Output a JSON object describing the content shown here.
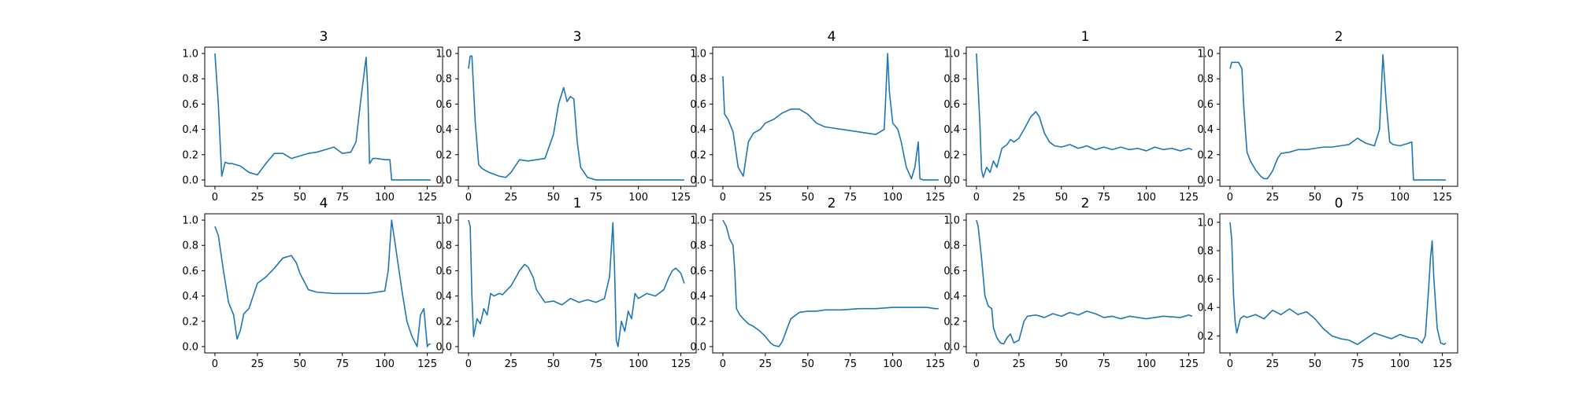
{
  "figure": {
    "line_color": "#1f77b4",
    "axes_color": "#000000",
    "background": "#ffffff"
  },
  "chart_data": [
    {
      "type": "line",
      "title": "3",
      "xlim": [
        -6,
        134
      ],
      "ylim": [
        -0.05,
        1.05
      ],
      "xticks": [
        0,
        25,
        50,
        75,
        100,
        125
      ],
      "yticks": [
        0.0,
        0.2,
        0.4,
        0.6,
        0.8,
        1.0
      ],
      "x": [
        0,
        2,
        4,
        6,
        8,
        10,
        15,
        20,
        25,
        30,
        35,
        40,
        45,
        50,
        55,
        60,
        65,
        70,
        75,
        80,
        83,
        86,
        89,
        90,
        91,
        93,
        95,
        100,
        103,
        104,
        105,
        110,
        120,
        127
      ],
      "y": [
        1.0,
        0.6,
        0.03,
        0.14,
        0.13,
        0.13,
        0.11,
        0.06,
        0.04,
        0.13,
        0.21,
        0.21,
        0.17,
        0.19,
        0.21,
        0.22,
        0.24,
        0.26,
        0.21,
        0.22,
        0.3,
        0.65,
        0.97,
        0.7,
        0.13,
        0.17,
        0.17,
        0.16,
        0.16,
        0.0,
        0.0,
        0.0,
        0.0,
        0.0
      ]
    },
    {
      "type": "line",
      "title": "3",
      "xlim": [
        -6,
        134
      ],
      "ylim": [
        -0.05,
        1.05
      ],
      "xticks": [
        0,
        25,
        50,
        75,
        100,
        125
      ],
      "yticks": [
        0.0,
        0.2,
        0.4,
        0.6,
        0.8,
        1.0
      ],
      "x": [
        0,
        1,
        2,
        4,
        6,
        8,
        12,
        18,
        22,
        25,
        30,
        35,
        40,
        45,
        50,
        53,
        56,
        58,
        60,
        62,
        64,
        66,
        70,
        75,
        80,
        100,
        127
      ],
      "y": [
        0.88,
        0.98,
        0.98,
        0.45,
        0.12,
        0.09,
        0.06,
        0.03,
        0.02,
        0.06,
        0.16,
        0.15,
        0.16,
        0.17,
        0.36,
        0.6,
        0.73,
        0.62,
        0.66,
        0.64,
        0.3,
        0.1,
        0.02,
        0.0,
        0.0,
        0.0,
        0.0
      ]
    },
    {
      "type": "line",
      "title": "4",
      "xlim": [
        -6,
        134
      ],
      "ylim": [
        -0.05,
        1.05
      ],
      "xticks": [
        0,
        25,
        50,
        75,
        100,
        125
      ],
      "yticks": [
        0.0,
        0.2,
        0.4,
        0.6,
        0.8,
        1.0
      ],
      "x": [
        0,
        1,
        3,
        6,
        9,
        12,
        15,
        18,
        22,
        25,
        30,
        35,
        40,
        45,
        50,
        55,
        60,
        65,
        70,
        80,
        90,
        95,
        97,
        98,
        100,
        103,
        105,
        108,
        111,
        113,
        115,
        116,
        118,
        127
      ],
      "y": [
        0.82,
        0.52,
        0.48,
        0.38,
        0.1,
        0.03,
        0.3,
        0.37,
        0.4,
        0.45,
        0.48,
        0.53,
        0.56,
        0.56,
        0.52,
        0.45,
        0.42,
        0.41,
        0.4,
        0.38,
        0.36,
        0.4,
        1.0,
        0.7,
        0.45,
        0.4,
        0.3,
        0.1,
        0.01,
        0.1,
        0.3,
        0.01,
        0.0,
        0.0
      ]
    },
    {
      "type": "line",
      "title": "1",
      "xlim": [
        -6,
        134
      ],
      "ylim": [
        -0.05,
        1.05
      ],
      "xticks": [
        0,
        25,
        50,
        75,
        100,
        125
      ],
      "yticks": [
        0.0,
        0.2,
        0.4,
        0.6,
        0.8,
        1.0
      ],
      "x": [
        0,
        2,
        3,
        4,
        6,
        8,
        10,
        12,
        15,
        18,
        20,
        22,
        25,
        28,
        32,
        35,
        37,
        40,
        43,
        46,
        50,
        55,
        60,
        65,
        70,
        75,
        80,
        85,
        90,
        95,
        100,
        105,
        110,
        115,
        120,
        125,
        127
      ],
      "y": [
        1.0,
        0.45,
        0.08,
        0.02,
        0.1,
        0.06,
        0.15,
        0.1,
        0.25,
        0.28,
        0.32,
        0.3,
        0.33,
        0.4,
        0.5,
        0.54,
        0.5,
        0.37,
        0.3,
        0.27,
        0.26,
        0.28,
        0.25,
        0.27,
        0.24,
        0.26,
        0.24,
        0.26,
        0.24,
        0.25,
        0.23,
        0.26,
        0.24,
        0.25,
        0.23,
        0.25,
        0.24
      ]
    },
    {
      "type": "line",
      "title": "2",
      "xlim": [
        -6,
        134
      ],
      "ylim": [
        -0.05,
        1.05
      ],
      "xticks": [
        0,
        25,
        50,
        75,
        100,
        125
      ],
      "yticks": [
        0.0,
        0.2,
        0.4,
        0.6,
        0.8,
        1.0
      ],
      "x": [
        0,
        1,
        3,
        5,
        7,
        8,
        9,
        10,
        12,
        15,
        18,
        20,
        22,
        25,
        28,
        30,
        35,
        40,
        45,
        50,
        55,
        60,
        65,
        70,
        75,
        80,
        85,
        88,
        90,
        92,
        94,
        96,
        100,
        105,
        107,
        108,
        127
      ],
      "y": [
        0.88,
        0.93,
        0.93,
        0.93,
        0.88,
        0.6,
        0.4,
        0.22,
        0.15,
        0.08,
        0.03,
        0.01,
        0.01,
        0.07,
        0.17,
        0.21,
        0.22,
        0.24,
        0.24,
        0.25,
        0.26,
        0.26,
        0.27,
        0.28,
        0.33,
        0.29,
        0.27,
        0.4,
        0.99,
        0.6,
        0.3,
        0.28,
        0.27,
        0.29,
        0.3,
        0.0,
        0.0
      ]
    },
    {
      "type": "line",
      "title": "4",
      "xlim": [
        -6,
        134
      ],
      "ylim": [
        -0.05,
        1.05
      ],
      "xticks": [
        0,
        25,
        50,
        75,
        100,
        125
      ],
      "yticks": [
        0.0,
        0.2,
        0.4,
        0.6,
        0.8,
        1.0
      ],
      "x": [
        0,
        2,
        5,
        8,
        11,
        13,
        15,
        17,
        20,
        25,
        30,
        35,
        40,
        45,
        48,
        50,
        55,
        60,
        70,
        80,
        90,
        100,
        102,
        104,
        106,
        110,
        113,
        116,
        119,
        121,
        123,
        125,
        126,
        127
      ],
      "y": [
        0.95,
        0.88,
        0.6,
        0.35,
        0.25,
        0.06,
        0.13,
        0.26,
        0.3,
        0.5,
        0.55,
        0.62,
        0.7,
        0.72,
        0.66,
        0.58,
        0.45,
        0.43,
        0.42,
        0.42,
        0.42,
        0.44,
        0.6,
        1.0,
        0.82,
        0.45,
        0.2,
        0.08,
        0.0,
        0.25,
        0.3,
        0.0,
        0.02,
        0.02
      ]
    },
    {
      "type": "line",
      "title": "1",
      "xlim": [
        -6,
        134
      ],
      "ylim": [
        -0.05,
        1.05
      ],
      "xticks": [
        0,
        25,
        50,
        75,
        100,
        125
      ],
      "yticks": [
        0.0,
        0.2,
        0.4,
        0.6,
        0.8,
        1.0
      ],
      "x": [
        0,
        1,
        2,
        3,
        4,
        5,
        7,
        9,
        11,
        13,
        15,
        18,
        20,
        25,
        28,
        30,
        33,
        35,
        38,
        40,
        45,
        50,
        55,
        60,
        65,
        70,
        75,
        80,
        83,
        85,
        86,
        87,
        88,
        90,
        92,
        94,
        96,
        98,
        100,
        105,
        110,
        115,
        118,
        120,
        122,
        125,
        127
      ],
      "y": [
        1.0,
        0.95,
        0.4,
        0.08,
        0.15,
        0.22,
        0.18,
        0.3,
        0.25,
        0.42,
        0.4,
        0.42,
        0.41,
        0.48,
        0.55,
        0.6,
        0.65,
        0.63,
        0.55,
        0.45,
        0.35,
        0.36,
        0.33,
        0.38,
        0.35,
        0.37,
        0.35,
        0.38,
        0.55,
        0.98,
        0.6,
        0.05,
        0.0,
        0.2,
        0.12,
        0.28,
        0.22,
        0.42,
        0.38,
        0.42,
        0.4,
        0.45,
        0.55,
        0.6,
        0.62,
        0.58,
        0.5
      ]
    },
    {
      "type": "line",
      "title": "2",
      "xlim": [
        -6,
        134
      ],
      "ylim": [
        -0.05,
        1.05
      ],
      "xticks": [
        0,
        25,
        50,
        75,
        100,
        125
      ],
      "yticks": [
        0.0,
        0.2,
        0.4,
        0.6,
        0.8,
        1.0
      ],
      "x": [
        0,
        2,
        4,
        6,
        7,
        8,
        10,
        12,
        15,
        18,
        22,
        25,
        28,
        30,
        33,
        35,
        38,
        40,
        45,
        50,
        55,
        60,
        70,
        80,
        90,
        100,
        110,
        115,
        120,
        125,
        127
      ],
      "y": [
        1.0,
        0.95,
        0.85,
        0.8,
        0.6,
        0.3,
        0.25,
        0.22,
        0.18,
        0.16,
        0.12,
        0.08,
        0.03,
        0.01,
        0.0,
        0.04,
        0.15,
        0.22,
        0.27,
        0.28,
        0.28,
        0.29,
        0.29,
        0.3,
        0.3,
        0.31,
        0.31,
        0.31,
        0.31,
        0.3,
        0.3
      ]
    },
    {
      "type": "line",
      "title": "2",
      "xlim": [
        -6,
        134
      ],
      "ylim": [
        -0.05,
        1.05
      ],
      "xticks": [
        0,
        25,
        50,
        75,
        100,
        125
      ],
      "yticks": [
        0.0,
        0.2,
        0.4,
        0.6,
        0.8,
        1.0
      ],
      "x": [
        0,
        1,
        3,
        5,
        7,
        9,
        10,
        12,
        14,
        16,
        18,
        20,
        22,
        25,
        28,
        30,
        35,
        40,
        45,
        50,
        55,
        60,
        65,
        70,
        75,
        80,
        85,
        90,
        100,
        110,
        120,
        125,
        127
      ],
      "y": [
        1.0,
        0.95,
        0.7,
        0.4,
        0.32,
        0.3,
        0.15,
        0.07,
        0.03,
        0.02,
        0.07,
        0.1,
        0.03,
        0.05,
        0.2,
        0.24,
        0.25,
        0.23,
        0.26,
        0.24,
        0.27,
        0.25,
        0.28,
        0.26,
        0.23,
        0.24,
        0.22,
        0.24,
        0.22,
        0.24,
        0.23,
        0.25,
        0.24
      ]
    },
    {
      "type": "line",
      "title": "0",
      "xlim": [
        -6,
        134
      ],
      "ylim": [
        0.08,
        1.06
      ],
      "xticks": [
        0,
        25,
        50,
        75,
        100,
        125
      ],
      "yticks": [
        0.2,
        0.4,
        0.6,
        0.8,
        1.0
      ],
      "x": [
        0,
        1,
        2,
        3,
        4,
        6,
        8,
        10,
        15,
        20,
        25,
        30,
        35,
        40,
        45,
        50,
        55,
        60,
        65,
        70,
        75,
        80,
        85,
        90,
        95,
        100,
        105,
        110,
        113,
        115,
        117,
        118,
        119,
        120,
        122,
        124,
        126,
        127
      ],
      "y": [
        1.0,
        0.88,
        0.5,
        0.3,
        0.22,
        0.32,
        0.34,
        0.33,
        0.35,
        0.32,
        0.38,
        0.35,
        0.39,
        0.35,
        0.37,
        0.32,
        0.25,
        0.2,
        0.18,
        0.17,
        0.14,
        0.18,
        0.22,
        0.2,
        0.18,
        0.21,
        0.19,
        0.18,
        0.15,
        0.2,
        0.55,
        0.75,
        0.87,
        0.6,
        0.25,
        0.15,
        0.14,
        0.15
      ]
    }
  ]
}
